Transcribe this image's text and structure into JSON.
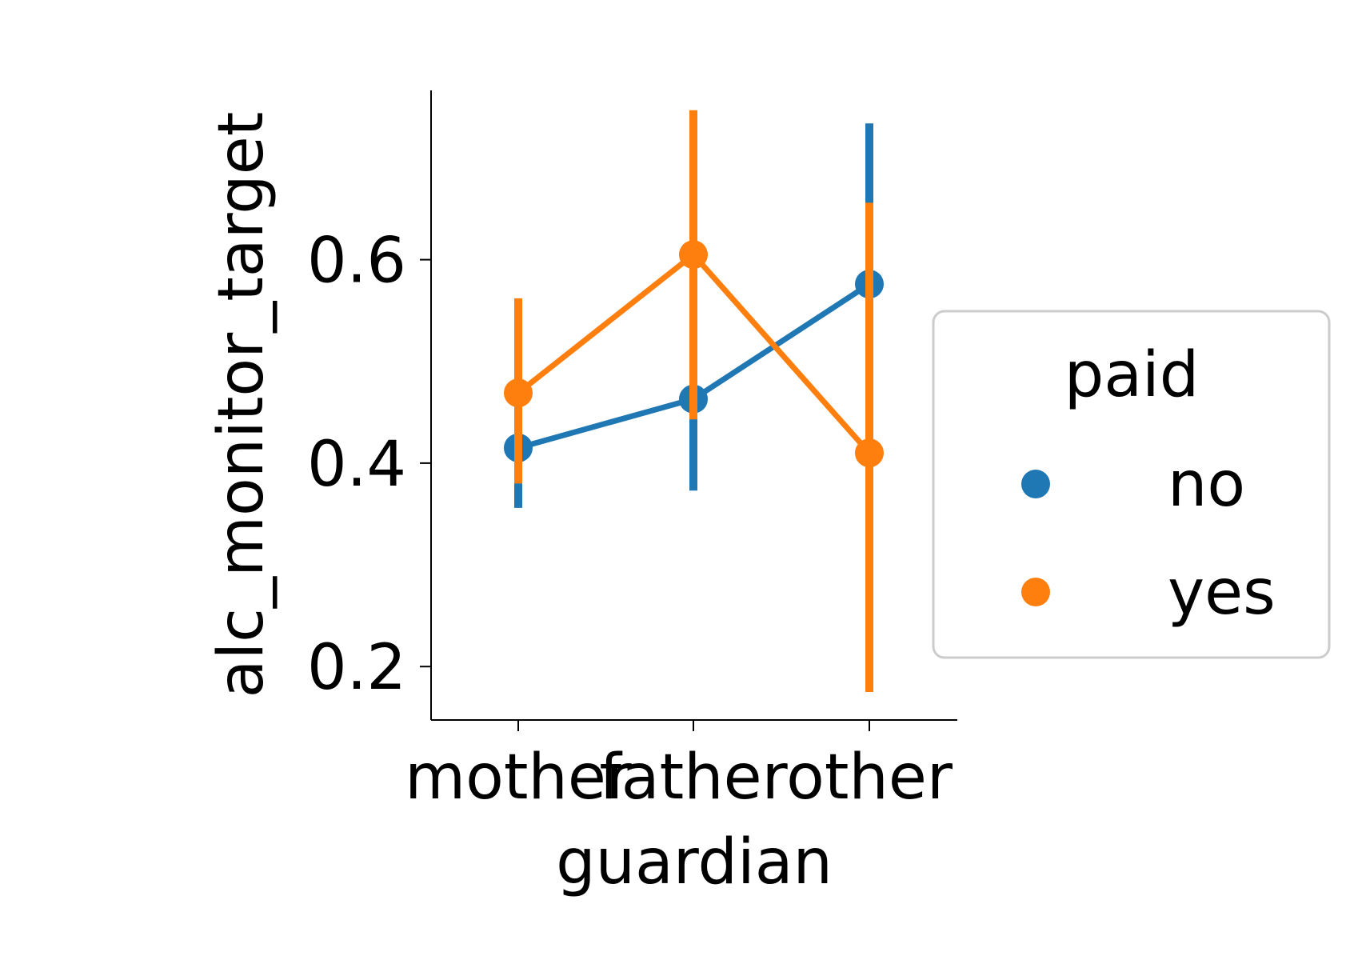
{
  "chart_data": {
    "type": "line",
    "xlabel": "guardian",
    "ylabel": "alc_monitor_target",
    "categories": [
      "mother",
      "father",
      "other"
    ],
    "yticks": [
      "0.2",
      "0.4",
      "0.6"
    ],
    "ylim": [
      0.15,
      0.77
    ],
    "legend": {
      "title": "paid",
      "placement": "right"
    },
    "series": [
      {
        "name": "no",
        "color": "#1f77b4",
        "values": [
          0.415,
          0.463,
          0.576
        ],
        "ci_low": [
          0.356,
          0.373,
          0.41
        ],
        "ci_high": [
          0.475,
          0.548,
          0.734
        ]
      },
      {
        "name": "yes",
        "color": "#ff7f0e",
        "values": [
          0.469,
          0.605,
          0.41
        ],
        "ci_low": [
          0.38,
          0.443,
          0.175
        ],
        "ci_high": [
          0.562,
          0.747,
          0.656
        ]
      }
    ]
  }
}
